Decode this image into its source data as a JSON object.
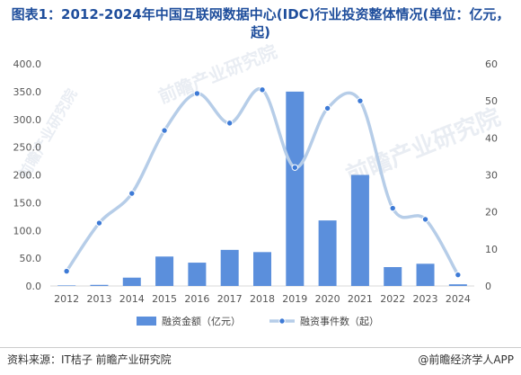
{
  "title": "图表1：2012-2024年中国互联网数据中心(IDC)行业投资整体情况(单位：亿元，起)",
  "footer": {
    "source": "资料来源：IT桔子 前瞻产业研究院",
    "brand": "@前瞻经济学人APP"
  },
  "watermark": {
    "text": "前瞻产业研究院",
    "small": "前瞻产业研究院"
  },
  "colors": {
    "bar": "#5b8fdc",
    "line": "#b6cde8",
    "marker": "#3d7ad6",
    "axis": "#d9d9d9",
    "title": "#1f4e9c"
  },
  "chart_data": {
    "type": "bar",
    "categories": [
      "2012",
      "2013",
      "2014",
      "2015",
      "2016",
      "2017",
      "2018",
      "2019",
      "2020",
      "2021",
      "2022",
      "2023",
      "2024"
    ],
    "series": [
      {
        "name": "融资金额（亿元）",
        "type": "bar",
        "axis": "left",
        "values": [
          1,
          2,
          15,
          53,
          42,
          65,
          61,
          350,
          118,
          200,
          34,
          40,
          3
        ]
      },
      {
        "name": "融资事件数（起）",
        "type": "line",
        "axis": "right",
        "values": [
          4,
          17,
          25,
          42,
          52,
          44,
          53,
          32,
          48,
          50,
          21,
          18,
          3
        ]
      }
    ],
    "left_axis": {
      "ylim": [
        0,
        400
      ],
      "ticks": [
        "0.0",
        "50.0",
        "100.0",
        "150.0",
        "200.0",
        "250.0",
        "300.0",
        "350.0",
        "400.0"
      ]
    },
    "right_axis": {
      "ylim": [
        0,
        60
      ],
      "ticks": [
        "0",
        "10",
        "20",
        "30",
        "40",
        "50",
        "60"
      ]
    },
    "legend_position": "bottom",
    "grid": false
  }
}
